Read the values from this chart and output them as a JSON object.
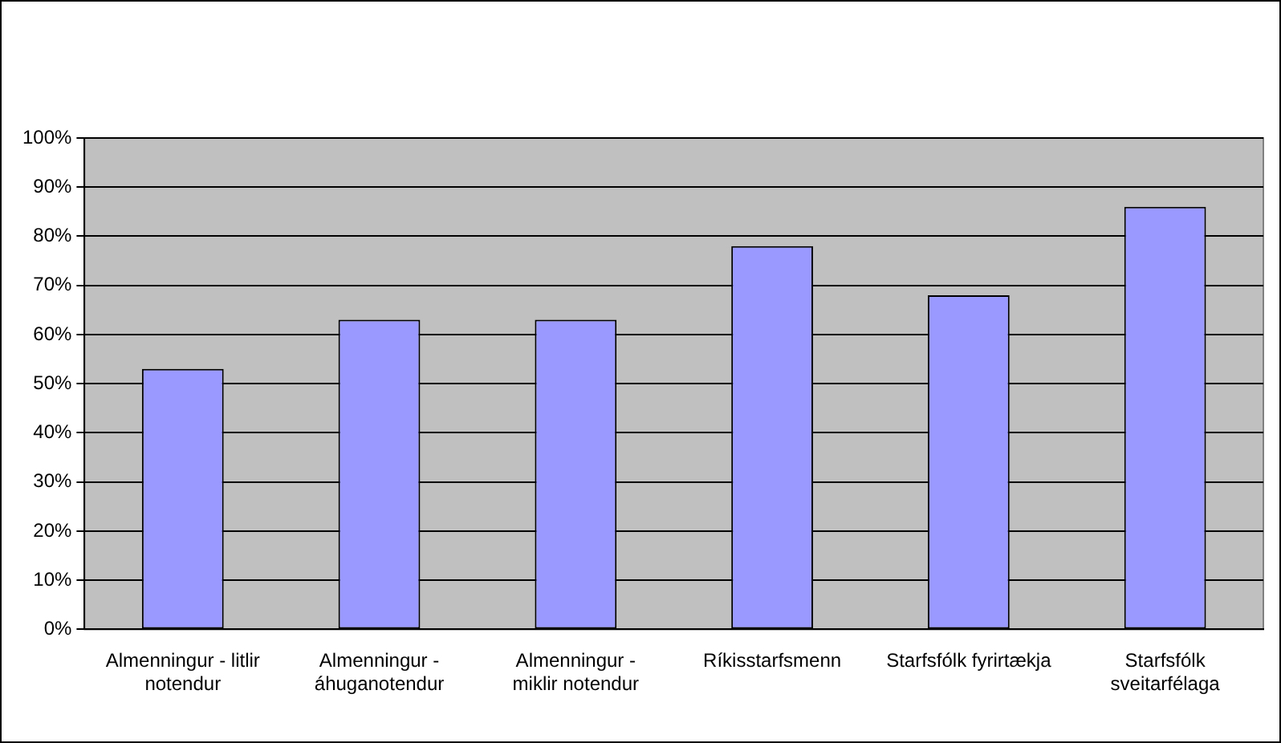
{
  "chart_data": {
    "type": "bar",
    "categories": [
      "Almenningur - litlir notendur",
      "Almenningur - áhuganotendur",
      "Almenningur - miklir notendur",
      "Ríkisstarfsmenn",
      "Starfsfólk fyrirtækja",
      "Starfsfólk sveitarfélaga"
    ],
    "values": [
      53,
      63,
      63,
      78,
      68,
      86
    ],
    "color": "#9999ff",
    "ylim": [
      0,
      100
    ],
    "yticks": [
      {
        "value": 0,
        "label": "0%"
      },
      {
        "value": 10,
        "label": "10%"
      },
      {
        "value": 20,
        "label": "20%"
      },
      {
        "value": 30,
        "label": "30%"
      },
      {
        "value": 40,
        "label": "40%"
      },
      {
        "value": 50,
        "label": "50%"
      },
      {
        "value": 60,
        "label": "60%"
      },
      {
        "value": 70,
        "label": "70%"
      },
      {
        "value": 80,
        "label": "80%"
      },
      {
        "value": 90,
        "label": "90%"
      },
      {
        "value": 100,
        "label": "100%"
      }
    ],
    "grid": "y",
    "legend": false
  }
}
